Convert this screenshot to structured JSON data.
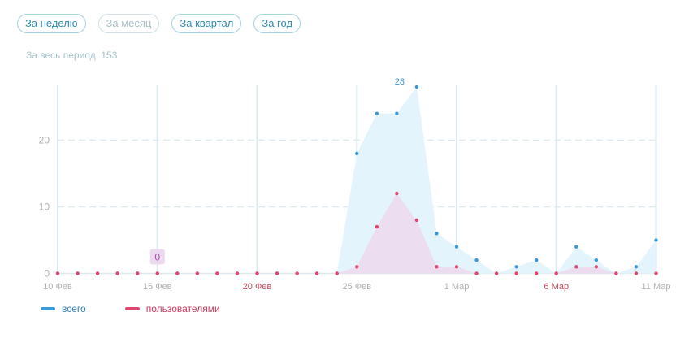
{
  "period_tabs": [
    {
      "label": "За неделю",
      "active": true
    },
    {
      "label": "За месяц",
      "active": false
    },
    {
      "label": "За квартал",
      "active": true
    },
    {
      "label": "За год",
      "active": true
    }
  ],
  "total_label": "За весь период: 153",
  "colors": {
    "total": "#3a9ad9",
    "users": "#e2456e",
    "total_fill": "#e3f4fc",
    "users_fill": "#ecdaf0",
    "axis_text": "#b0b0b0",
    "weekend_text": "#c84a5a",
    "grid": "#dde8ee",
    "annotation_bg": "#ecd8ef",
    "annotation_text": "#a64ca6"
  },
  "chart_data": {
    "type": "area",
    "x_ticks": [
      {
        "label": "10 Фев",
        "index": 0,
        "weekend": false
      },
      {
        "label": "15 Фев",
        "index": 5,
        "weekend": false
      },
      {
        "label": "20 Фев",
        "index": 10,
        "weekend": true
      },
      {
        "label": "25 Фев",
        "index": 15,
        "weekend": false
      },
      {
        "label": "1 Мар",
        "index": 20,
        "weekend": false
      },
      {
        "label": "6 Мар",
        "index": 25,
        "weekend": true
      },
      {
        "label": "11 Мар",
        "index": 30,
        "weekend": false
      }
    ],
    "y_ticks": [
      0,
      10,
      20
    ],
    "ylim": [
      0,
      28
    ],
    "series": [
      {
        "name": "всего",
        "key": "total",
        "values": [
          0,
          0,
          0,
          0,
          0,
          0,
          0,
          0,
          0,
          0,
          0,
          0,
          0,
          0,
          0,
          18,
          24,
          24,
          28,
          6,
          4,
          2,
          0,
          1,
          2,
          0,
          4,
          2,
          0,
          1,
          5
        ]
      },
      {
        "name": "пользователями",
        "key": "users",
        "values": [
          0,
          0,
          0,
          0,
          0,
          0,
          0,
          0,
          0,
          0,
          0,
          0,
          0,
          0,
          0,
          1,
          7,
          12,
          8,
          1,
          1,
          0,
          0,
          0,
          0,
          0,
          1,
          1,
          0,
          0,
          0
        ]
      }
    ],
    "annotations": [
      {
        "label": "28",
        "series": "total",
        "index": 18
      },
      {
        "label": "0",
        "series": "users",
        "index": 5
      }
    ]
  }
}
